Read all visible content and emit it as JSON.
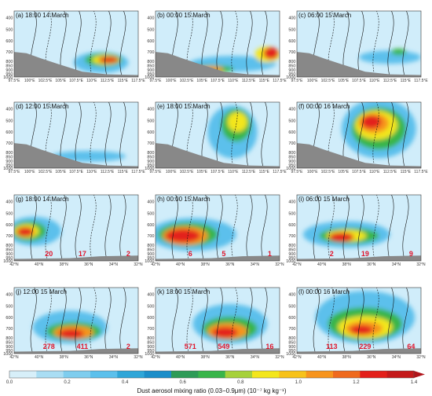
{
  "chart_data": {
    "type": "heatmap",
    "layout": "4x3 grid of vertical cross-section panels",
    "colors": {
      "background": "#e6f5fc",
      "light_blue": "#bde5f7",
      "blue": "#5bc0ec",
      "green": "#39b54a",
      "yellow": "#f3e61c",
      "orange": "#f7941d",
      "red": "#e3201b",
      "dark_red": "#b0141a",
      "terrain": "#888888",
      "contour": "#111111",
      "annotation": "#e0142a"
    },
    "y_ticks": [
      "400",
      "500",
      "600",
      "700",
      "800",
      "850",
      "900",
      "950",
      "1000"
    ],
    "lon_ticks": [
      "97.5°E",
      "100°E",
      "102.5°E",
      "105°E",
      "107.5°E",
      "110°E",
      "112.5°E",
      "115°E",
      "117.5°E"
    ],
    "lat_ticks": [
      "42°N",
      "40°N",
      "38°N",
      "36°N",
      "34°N",
      "32°N"
    ],
    "panels": [
      {
        "label": "(a) 18:00 14 March",
        "axis": "lon",
        "annotations": []
      },
      {
        "label": "(b) 00:00 15 March",
        "axis": "lon",
        "annotations": []
      },
      {
        "label": "(c) 06:00 15 March",
        "axis": "lon",
        "annotations": []
      },
      {
        "label": "(d) 12:00 15 March",
        "axis": "lon",
        "annotations": []
      },
      {
        "label": "(e) 18:00 15 March",
        "axis": "lon",
        "annotations": []
      },
      {
        "label": "(f) 00:00 16 March",
        "axis": "lon",
        "annotations": []
      },
      {
        "label": "(g) 18:00 14 March",
        "axis": "lat",
        "annotations": [
          "20",
          "17",
          "2"
        ]
      },
      {
        "label": "(h) 00:00 15 March",
        "axis": "lat",
        "annotations": [
          "6",
          "5",
          "1"
        ]
      },
      {
        "label": "(i) 06:00 15 March",
        "axis": "lat",
        "annotations": [
          "2",
          "19",
          "9"
        ]
      },
      {
        "label": "(j) 12:00 15 March",
        "axis": "lat",
        "annotations": [
          "278",
          "411",
          "2"
        ]
      },
      {
        "label": "(k) 18:00 15 March",
        "axis": "lat",
        "annotations": [
          "571",
          "549",
          "16"
        ]
      },
      {
        "label": "(l) 00:00 16 March",
        "axis": "lat",
        "annotations": [
          "113",
          "229",
          "64"
        ]
      }
    ],
    "colorbar": {
      "ticks": [
        "0.0",
        "0.2",
        "0.4",
        "0.6",
        "0.8",
        "1.0",
        "1.2",
        "1.4"
      ],
      "range": [
        0,
        1.4
      ],
      "title": "Dust aerosol mixing ratio (0.03−0.9μm) (10⁻⁷ kg kg⁻¹)"
    }
  }
}
